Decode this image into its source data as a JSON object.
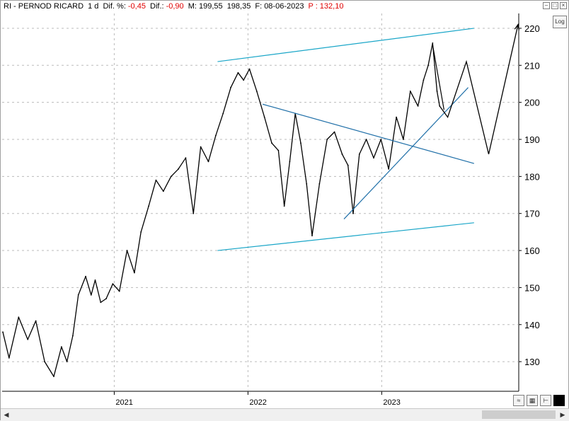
{
  "header": {
    "symbol": "RI - PERNOD RICARD",
    "interval": "1 d",
    "dif_pct_label": "Dif. %:",
    "dif_pct_value": "-0,45",
    "dif_label": "Dif.:",
    "dif_value": "-0,90",
    "m_label": "M:",
    "m_value": "199,55",
    "m2_value": "198,35",
    "f_label": "F:",
    "f_value": "08-06-2023",
    "p_label": "P :",
    "p_value": "132,10"
  },
  "controls": {
    "log_label": "Log"
  },
  "colors": {
    "price": "#000000",
    "trendline": "#1aa6c8",
    "grid": "#bbbbbb",
    "accent": "#e00000"
  },
  "chart_data": {
    "type": "line",
    "title": "",
    "xlabel": "",
    "ylabel": "",
    "ylim": [
      122,
      224
    ],
    "xlim": [
      "2020-03-01",
      "2024-01-10"
    ],
    "x_ticks": [
      "2021",
      "2022",
      "2023"
    ],
    "y_ticks": [
      130,
      140,
      150,
      160,
      170,
      180,
      190,
      200,
      210,
      220
    ],
    "grid": true,
    "y_axis_side": "right",
    "series": [
      {
        "x": [
          "2020-03-03",
          "2020-03-20",
          "2020-04-15",
          "2020-05-10",
          "2020-06-01",
          "2020-06-25",
          "2020-07-20",
          "2020-08-10",
          "2020-08-25",
          "2020-09-10",
          "2020-09-25",
          "2020-10-15",
          "2020-10-30",
          "2020-11-10",
          "2020-11-25",
          "2020-12-10",
          "2020-12-28",
          "2021-01-15",
          "2021-02-05",
          "2021-02-25",
          "2021-03-15",
          "2021-04-05",
          "2021-04-25",
          "2021-05-15",
          "2021-06-05",
          "2021-06-25",
          "2021-07-15",
          "2021-08-05",
          "2021-08-25",
          "2021-09-15",
          "2021-10-05",
          "2021-10-25",
          "2021-11-15",
          "2021-12-05",
          "2021-12-20",
          "2022-01-05",
          "2022-01-25",
          "2022-02-15",
          "2022-03-07",
          "2022-03-25",
          "2022-04-10",
          "2022-04-25",
          "2022-05-10",
          "2022-05-25",
          "2022-06-10",
          "2022-06-25",
          "2022-07-15",
          "2022-08-05",
          "2022-08-25",
          "2022-09-15",
          "2022-10-01",
          "2022-10-15",
          "2022-11-01",
          "2022-11-20",
          "2022-12-10",
          "2022-12-30",
          "2023-01-20",
          "2023-02-10",
          "2023-03-01",
          "2023-03-20",
          "2023-04-10",
          "2023-04-25",
          "2023-05-08",
          "2023-05-20",
          "2023-06-01",
          "2023-06-08"
        ],
        "values": [
          138,
          131,
          142,
          136,
          141,
          130,
          126,
          134,
          130,
          137,
          148,
          153,
          148,
          152,
          146,
          147,
          151,
          149,
          160,
          154,
          165,
          172,
          179,
          176,
          180,
          182,
          185,
          170,
          188,
          184,
          191,
          197,
          204,
          208,
          206,
          209,
          203,
          196,
          189,
          187,
          172,
          184,
          197,
          189,
          178,
          164,
          178,
          190,
          192,
          186,
          183,
          170,
          186,
          190,
          185,
          190,
          182,
          196,
          190,
          203,
          199,
          206,
          210,
          216,
          203,
          199
        ]
      }
    ],
    "annotations": {
      "upper_channel": [
        [
          "2021-10-10",
          211
        ],
        [
          "2023-09-10",
          220
        ]
      ],
      "lower_channel": [
        [
          "2021-10-10",
          160
        ],
        [
          "2023-09-10",
          167.5
        ]
      ],
      "wedge_upper": [
        [
          "2022-02-10",
          199.5
        ],
        [
          "2023-09-10",
          183.5
        ]
      ],
      "wedge_lower": [
        [
          "2022-09-20",
          168.5
        ],
        [
          "2023-08-25",
          204
        ]
      ],
      "projection": [
        [
          "2023-06-08",
          199
        ],
        [
          "2023-06-30",
          196
        ],
        [
          "2023-08-20",
          211
        ],
        [
          "2023-10-20",
          186
        ],
        [
          "2024-01-08",
          221
        ]
      ],
      "projection_lead": [
        [
          "2023-05-20",
          215.5
        ],
        [
          "2023-06-20",
          198
        ]
      ]
    }
  }
}
